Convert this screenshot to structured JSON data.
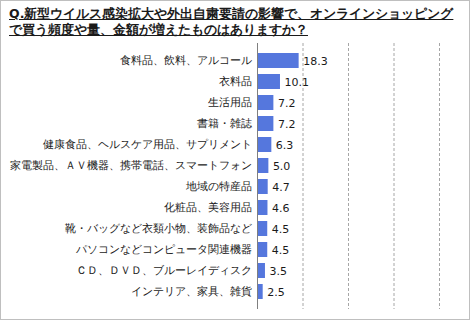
{
  "chart_data": {
    "type": "bar",
    "title": "Q.新型ウイルス感染拡大や外出自粛要請の影響で、オンラインショッピングで買う頻度や量、金額が増えたものはありますか？",
    "orientation": "horizontal",
    "categories": [
      "食料品、飲料、アルコール",
      "衣料品",
      "生活用品",
      "書籍・雑誌",
      "健康食品、ヘルスケア用品、サプリメント",
      "家電製品、ＡＶ機器、携帯電話、スマートフォン",
      "地域の特産品",
      "化粧品、美容用品",
      "靴・バッグなど衣類小物、装飾品など",
      "パソコンなどコンピュータ関連機器",
      "ＣＤ、ＤＶＤ、ブルーレイディスク",
      "インテリア、家具、雑貨"
    ],
    "values": [
      18.3,
      10.1,
      7.2,
      7.2,
      6.3,
      5.0,
      4.7,
      4.6,
      4.5,
      4.5,
      3.5,
      2.5
    ],
    "value_labels": [
      "18.3",
      "10.1",
      "7.2",
      "7.2",
      "6.3",
      "5.0",
      "4.7",
      "4.6",
      "4.5",
      "4.5",
      "3.5",
      "2.5"
    ],
    "data_labels": true,
    "color": "#5577dd",
    "xlim": [
      0,
      80
    ],
    "xticks": [
      0,
      20,
      40,
      60,
      80
    ],
    "grid": true,
    "tick_labels": "y"
  }
}
